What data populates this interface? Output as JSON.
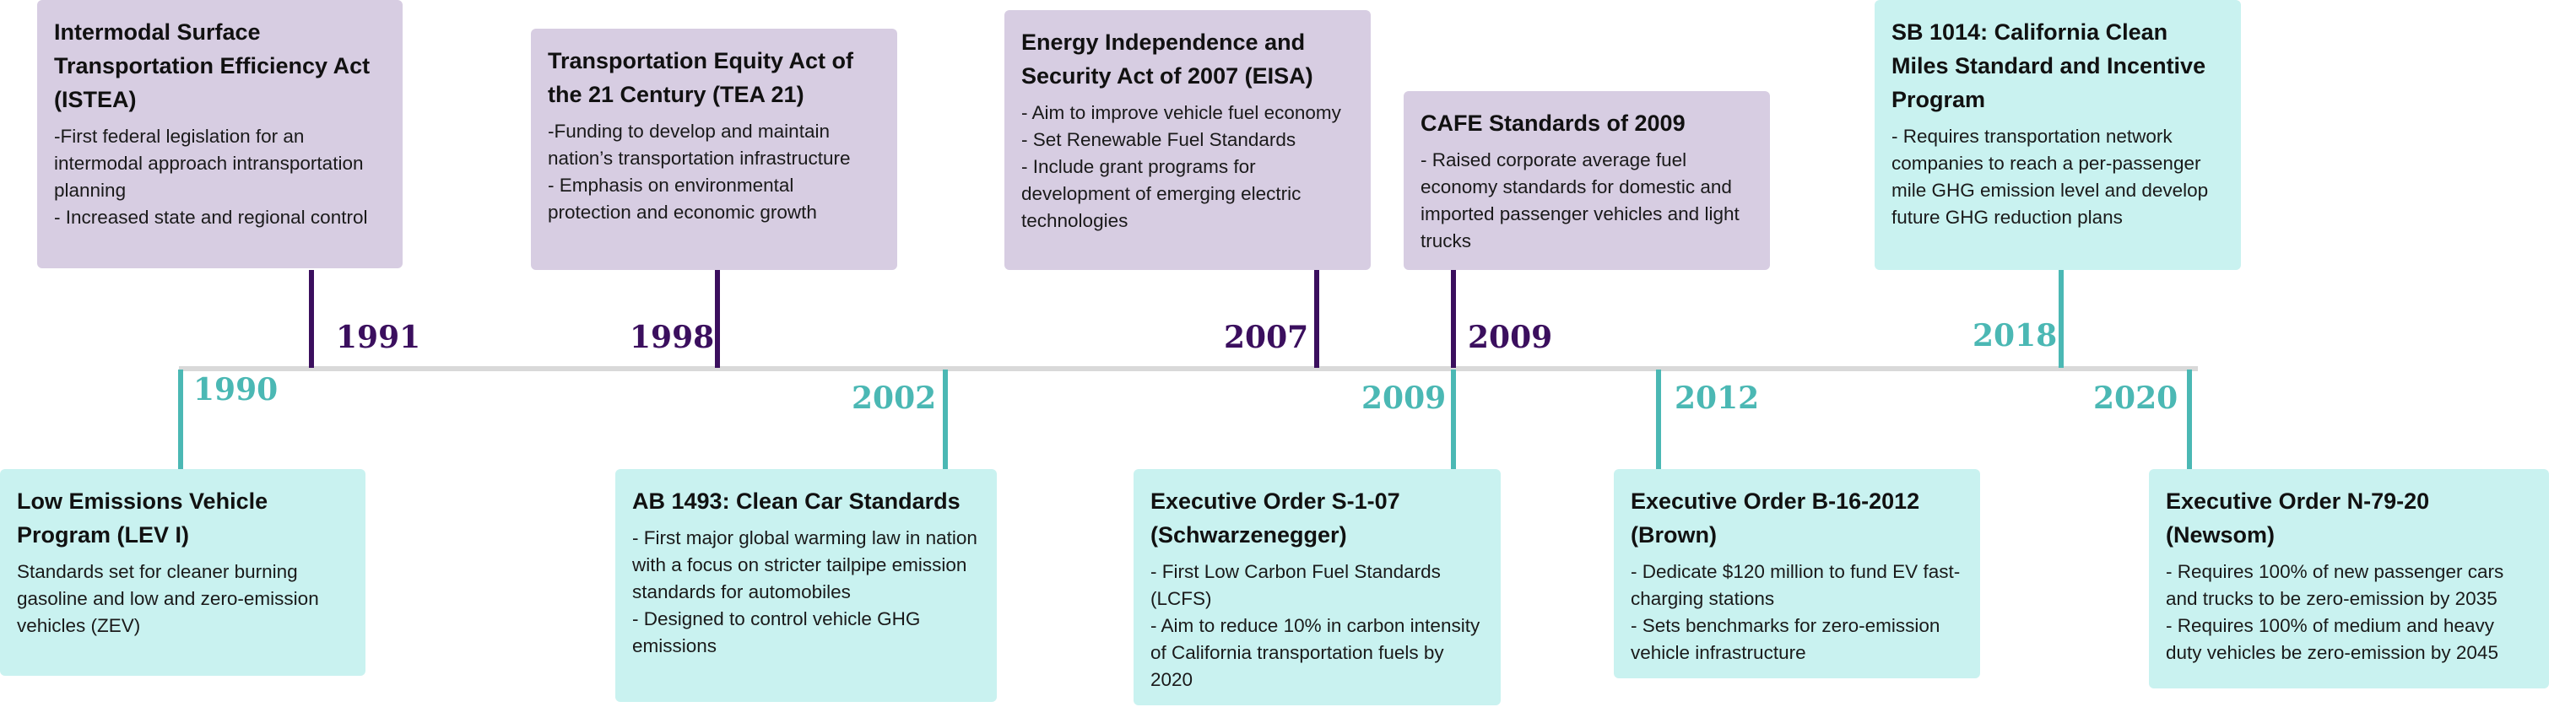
{
  "timeline": {
    "federal": [
      {
        "year": "1991",
        "title": "Intermodal Surface Transportation Efficiency Act (ISTEA)",
        "lines": [
          "-First federal legislation for an intermodal approach intransportation planning",
          "- Increased state and regional control"
        ]
      },
      {
        "year": "1998",
        "title": "Transportation Equity Act of the 21 Century (TEA 21)",
        "lines": [
          "-Funding to develop and maintain nation’s transportation infrastructure",
          "- Emphasis on environmental protection and economic growth"
        ]
      },
      {
        "year": "2007",
        "title": "Energy Independence and Security Act of 2007 (EISA)",
        "lines": [
          "- Aim to improve vehicle fuel economy",
          "- Set Renewable Fuel Standards",
          "- Include grant programs for development of emerging electric technologies"
        ]
      },
      {
        "year": "2009",
        "title": "CAFE Standards of 2009",
        "lines": [
          "- Raised corporate average fuel economy standards for domestic and imported passenger vehicles and light trucks"
        ]
      }
    ],
    "california": [
      {
        "year": "1990",
        "title": "Low Emissions Vehicle Program (LEV I)",
        "lines": [
          "Standards set for cleaner burning gasoline and low and zero-emission vehicles (ZEV)"
        ]
      },
      {
        "year": "2002",
        "title": "AB 1493: Clean Car Standards",
        "lines": [
          "- First major global warming law in nation with a focus on stricter tailpipe emission standards for automobiles",
          "- Designed to control vehicle GHG emissions"
        ]
      },
      {
        "year": "2009",
        "title": "Executive Order S-1-07 (Schwarzenegger)",
        "lines": [
          "- First Low Carbon Fuel Standards (LCFS)",
          "- Aim to reduce 10% in carbon intensity of California transportation fuels by 2020"
        ]
      },
      {
        "year": "2012",
        "title": "Executive Order B-16-2012 (Brown)",
        "lines": [
          "- Dedicate $120 million to fund EV fast-charging stations",
          "- Sets benchmarks for zero-emission vehicle infrastructure"
        ]
      },
      {
        "year": "2018",
        "title": "SB 1014: California Clean Miles Standard and Incentive Program",
        "lines": [
          "- Requires transportation network companies to reach a per-passenger mile GHG emission level and develop future GHG reduction plans"
        ]
      },
      {
        "year": "2020",
        "title": "Executive Order N-79-20 (Newsom)",
        "lines": [
          "- Requires 100% of new passenger cars and trucks to be zero-emission by 2035",
          "- Requires 100% of medium and heavy duty vehicles be zero-emission by 2045"
        ]
      }
    ]
  },
  "colors": {
    "federal_text": "#3b0f5e",
    "federal_card": "#d7cde2",
    "california_text": "#4bb8b4",
    "california_card": "#c9f2f0",
    "axis": "#d9d9d9"
  }
}
